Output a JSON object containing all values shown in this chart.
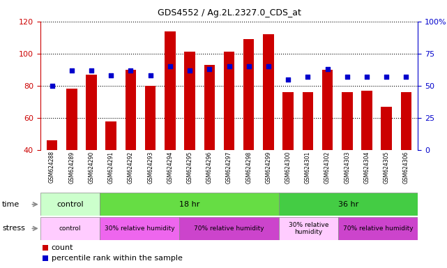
{
  "title": "GDS4552 / Ag.2L.2327.0_CDS_at",
  "samples": [
    "GSM624288",
    "GSM624289",
    "GSM624290",
    "GSM624291",
    "GSM624292",
    "GSM624293",
    "GSM624294",
    "GSM624295",
    "GSM624296",
    "GSM624297",
    "GSM624298",
    "GSM624299",
    "GSM624300",
    "GSM624301",
    "GSM624302",
    "GSM624303",
    "GSM624304",
    "GSM624305",
    "GSM624306"
  ],
  "counts": [
    46,
    78,
    87,
    58,
    90,
    80,
    114,
    101,
    93,
    101,
    109,
    112,
    76,
    76,
    90,
    76,
    77,
    67,
    76
  ],
  "percentiles": [
    50,
    62,
    62,
    58,
    62,
    58,
    65,
    62,
    63,
    65,
    65,
    65,
    55,
    57,
    63,
    57,
    57,
    57,
    57
  ],
  "bar_color": "#cc0000",
  "dot_color": "#0000cc",
  "left_ylim": [
    40,
    120
  ],
  "left_yticks": [
    40,
    60,
    80,
    100,
    120
  ],
  "right_ylim": [
    0,
    100
  ],
  "right_yticks": [
    0,
    25,
    50,
    75,
    100
  ],
  "time_groups": [
    {
      "label": "control",
      "start": 0,
      "end": 3,
      "color": "#ccffcc"
    },
    {
      "label": "18 hr",
      "start": 3,
      "end": 12,
      "color": "#66dd44"
    },
    {
      "label": "36 hr",
      "start": 12,
      "end": 19,
      "color": "#44cc44"
    }
  ],
  "stress_groups": [
    {
      "label": "control",
      "start": 0,
      "end": 3,
      "color": "#ffccff"
    },
    {
      "label": "30% relative humidity",
      "start": 3,
      "end": 7,
      "color": "#ee66ee"
    },
    {
      "label": "70% relative humidity",
      "start": 7,
      "end": 12,
      "color": "#cc44cc"
    },
    {
      "label": "30% relative\nhumidity",
      "start": 12,
      "end": 15,
      "color": "#ffccff"
    },
    {
      "label": "70% relative humidity",
      "start": 15,
      "end": 19,
      "color": "#cc44cc"
    }
  ],
  "background_color": "#ffffff",
  "grid_color": "#000000",
  "left_ylabel_color": "#cc0000",
  "right_ylabel_color": "#0000cc"
}
